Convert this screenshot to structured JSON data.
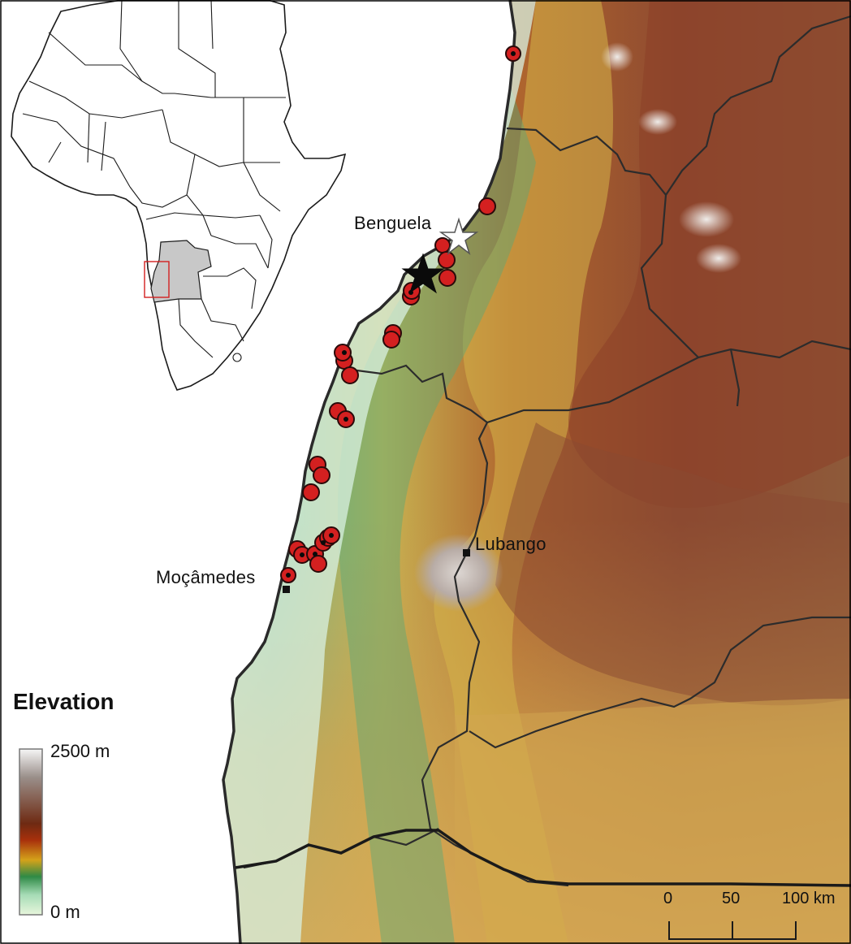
{
  "legend": {
    "title": "Elevation",
    "max_label": "2500 m",
    "min_label": "0 m",
    "ramp_colors": [
      "#f4f4f4",
      "#9a8f8a",
      "#6e2a12",
      "#a0300c",
      "#d49a1a",
      "#2f8a46",
      "#7ac89a",
      "#d4f0ce"
    ]
  },
  "places": {
    "benguela": "Benguela",
    "lubango": "Lubango",
    "mocamedes": "Moçâmedes"
  },
  "scale_bar": {
    "ticks": [
      "0",
      "50",
      "100 km"
    ]
  },
  "symbols": {
    "record_fill": "#d42020",
    "record_stroke": "#2a0a0a",
    "black_star_fill": "#0a0a0a",
    "white_star_fill": "#ffffff",
    "inset_country_fill": "#c8c8c8",
    "inset_box_stroke": "#d22020"
  }
}
